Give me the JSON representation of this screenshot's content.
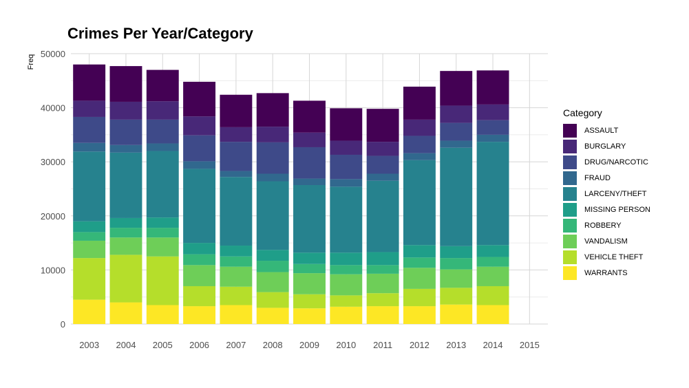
{
  "chart_data": {
    "type": "bar",
    "stacked": true,
    "title": "Crimes Per Year/Category",
    "xlabel": "",
    "ylabel": "Freq",
    "ylim": [
      0,
      50000
    ],
    "yticks": [
      "0",
      "10000",
      "20000",
      "30000",
      "40000",
      "50000"
    ],
    "categories": [
      "2003",
      "2004",
      "2005",
      "2006",
      "2007",
      "2008",
      "2009",
      "2010",
      "2011",
      "2012",
      "2013",
      "2014",
      "2015"
    ],
    "grid": true,
    "legend_title": "Category",
    "legend_position": "right",
    "series": [
      {
        "name": "WARRANTS",
        "color": "#FDE725",
        "values": [
          4500,
          4000,
          3500,
          3300,
          3500,
          3000,
          2900,
          3200,
          3300,
          3300,
          3600,
          3500,
          0
        ]
      },
      {
        "name": "VEHICLE THEFT",
        "color": "#B5DE2B",
        "values": [
          7700,
          8800,
          9000,
          3700,
          3400,
          2900,
          2600,
          2100,
          2400,
          3200,
          3100,
          3500,
          0
        ]
      },
      {
        "name": "VANDALISM",
        "color": "#6ECE58",
        "values": [
          3200,
          3200,
          3500,
          3900,
          3700,
          3700,
          3900,
          3900,
          3600,
          3900,
          3400,
          3600,
          0
        ]
      },
      {
        "name": "ROBBERY",
        "color": "#35B779",
        "values": [
          1600,
          1800,
          1800,
          2000,
          1900,
          2100,
          1700,
          1700,
          1600,
          1900,
          2100,
          1800,
          0
        ]
      },
      {
        "name": "MISSING PERSON",
        "color": "#1F9E89",
        "values": [
          2000,
          1800,
          1900,
          2100,
          2000,
          2000,
          2100,
          2300,
          2400,
          2300,
          2200,
          2200,
          0
        ]
      },
      {
        "name": "LARCENY/THEFT",
        "color": "#26828E",
        "values": [
          12900,
          12100,
          12300,
          13700,
          12700,
          12700,
          12500,
          12200,
          13200,
          15700,
          18200,
          19100,
          0
        ]
      },
      {
        "name": "FRAUD",
        "color": "#31688E",
        "values": [
          1600,
          1400,
          1400,
          1400,
          1100,
          1400,
          1200,
          1400,
          1300,
          1300,
          1300,
          1300,
          0
        ]
      },
      {
        "name": "DRUG/NARCOTIC",
        "color": "#3E4A89",
        "values": [
          4800,
          4700,
          4400,
          4800,
          5400,
          5800,
          5800,
          4500,
          3300,
          3200,
          3300,
          2700,
          0
        ]
      },
      {
        "name": "BURGLARY",
        "color": "#482878",
        "values": [
          3000,
          3300,
          3400,
          3500,
          2700,
          2900,
          2700,
          2600,
          2600,
          3000,
          3200,
          2900,
          0
        ]
      },
      {
        "name": "ASSAULT",
        "color": "#440154",
        "values": [
          6700,
          6600,
          5800,
          6400,
          6000,
          6200,
          5900,
          6000,
          6100,
          6100,
          6400,
          6300,
          0
        ]
      }
    ]
  }
}
